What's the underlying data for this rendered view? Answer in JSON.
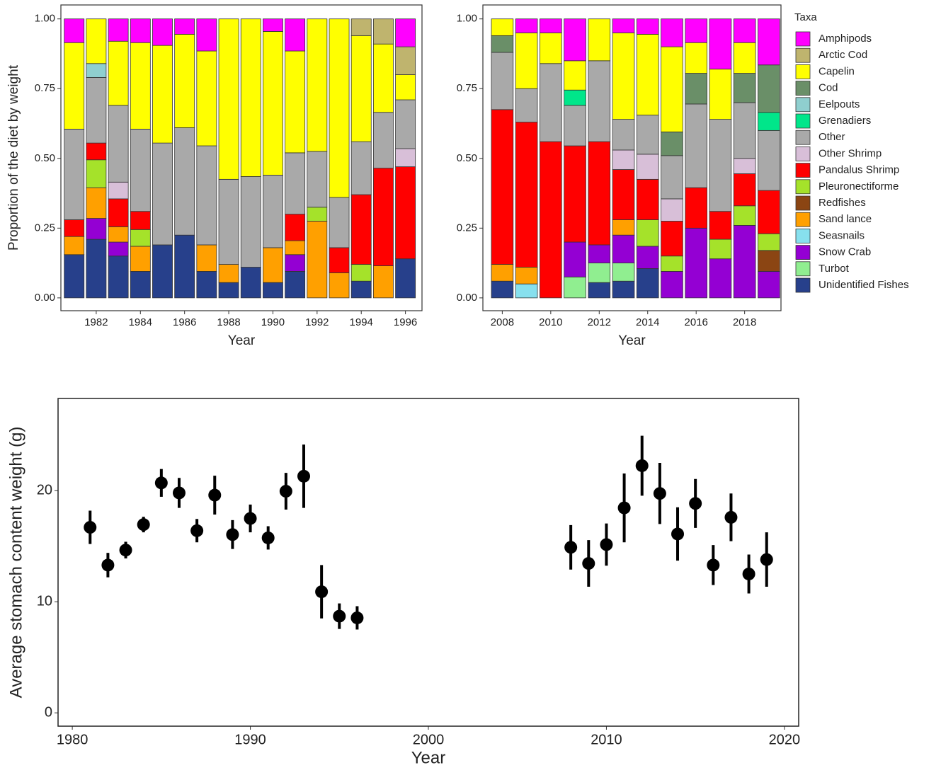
{
  "chart_data": [
    {
      "type": "stacked-bar",
      "xlabel": "Year",
      "ylabel": "Proportion of the diet by weight",
      "x": [
        1981,
        1982,
        1983,
        1984,
        1985,
        1986,
        1987,
        1988,
        1989,
        1990,
        1991,
        1992,
        1993,
        1994,
        1995,
        1996
      ],
      "xlim": [
        1980.4,
        1996.75
      ],
      "xticks": [
        1982,
        1984,
        1986,
        1988,
        1990,
        1992,
        1994,
        1996
      ],
      "ylim": [
        -0.046,
        1.05
      ],
      "yticks": [
        {
          "value": 0,
          "label": "0.00"
        },
        {
          "value": 0.25,
          "label": "0.25"
        },
        {
          "value": 0.5,
          "label": "0.50"
        },
        {
          "value": 0.75,
          "label": "0.75"
        },
        {
          "value": 1,
          "label": "1.00"
        }
      ],
      "series": [
        {
          "values": [
            0.085,
            0,
            0.08,
            0.085,
            0.095,
            0.055,
            0.115,
            0,
            0,
            0.045,
            0.115,
            0,
            0,
            0,
            0,
            0.1
          ]
        },
        {
          "values": [
            0,
            0,
            0,
            0,
            0,
            0,
            0,
            0,
            0,
            0,
            0,
            0,
            0,
            0.06,
            0.09,
            0.1
          ]
        },
        {
          "values": [
            0.31,
            0.16,
            0.23,
            0.31,
            0.35,
            0.335,
            0.34,
            0.575,
            0.565,
            0.515,
            0.365,
            0.475,
            0.64,
            0.38,
            0.245,
            0.09
          ]
        },
        {
          "values": [
            0,
            0,
            0,
            0,
            0,
            0,
            0,
            0,
            0,
            0,
            0,
            0,
            0,
            0,
            0,
            0
          ]
        },
        {
          "values": [
            0,
            0.05,
            0,
            0,
            0,
            0,
            0,
            0,
            0,
            0,
            0,
            0,
            0,
            0,
            0,
            0
          ]
        },
        {
          "values": [
            0,
            0,
            0,
            0,
            0,
            0,
            0,
            0,
            0,
            0,
            0,
            0,
            0,
            0,
            0,
            0
          ]
        },
        {
          "values": [
            0.325,
            0.235,
            0.275,
            0.295,
            0.365,
            0.385,
            0.355,
            0.305,
            0.325,
            0.26,
            0.22,
            0.2,
            0.18,
            0.19,
            0.2,
            0.175
          ]
        },
        {
          "values": [
            0,
            0,
            0.06,
            0,
            0,
            0,
            0,
            0,
            0,
            0,
            0,
            0,
            0,
            0,
            0,
            0.065
          ]
        },
        {
          "values": [
            0.06,
            0.06,
            0.1,
            0.065,
            0,
            0,
            0,
            0,
            0,
            0,
            0.095,
            0,
            0.09,
            0.25,
            0.35,
            0.33
          ]
        },
        {
          "values": [
            0,
            0.1,
            0,
            0.06,
            0,
            0,
            0,
            0,
            0,
            0,
            0,
            0.05,
            0,
            0.06,
            0,
            0
          ]
        },
        {
          "values": [
            0,
            0,
            0,
            0,
            0,
            0,
            0,
            0,
            0,
            0,
            0,
            0,
            0,
            0,
            0,
            0
          ]
        },
        {
          "values": [
            0.065,
            0.11,
            0.055,
            0.09,
            0,
            0,
            0.095,
            0.065,
            0,
            0.125,
            0.05,
            0.275,
            0.09,
            0,
            0.115,
            0
          ]
        },
        {
          "values": [
            0,
            0,
            0,
            0,
            0,
            0,
            0,
            0,
            0,
            0,
            0,
            0,
            0,
            0,
            0,
            0
          ]
        },
        {
          "values": [
            0,
            0.075,
            0.05,
            0,
            0,
            0,
            0,
            0,
            0,
            0,
            0.06,
            0,
            0,
            0,
            0,
            0
          ]
        },
        {
          "values": [
            0,
            0,
            0,
            0,
            0,
            0,
            0,
            0,
            0,
            0,
            0,
            0,
            0,
            0,
            0,
            0
          ]
        },
        {
          "values": [
            0.155,
            0.21,
            0.15,
            0.095,
            0.19,
            0.225,
            0.095,
            0.055,
            0.11,
            0.055,
            0.095,
            0,
            0,
            0.06,
            0,
            0.14
          ]
        }
      ]
    },
    {
      "type": "stacked-bar",
      "xlabel": "Year",
      "legend_title": "Taxa",
      "x": [
        2008,
        2009,
        2010,
        2011,
        2012,
        2013,
        2014,
        2015,
        2016,
        2017,
        2018,
        2019
      ],
      "xlim": [
        2007.2,
        2019.5
      ],
      "xticks": [
        2008,
        2010,
        2012,
        2014,
        2016,
        2018
      ],
      "ylim": [
        -0.046,
        1.05
      ],
      "yticks": [
        {
          "value": 0,
          "label": "0.00"
        },
        {
          "value": 0.25,
          "label": "0.25"
        },
        {
          "value": 0.5,
          "label": "0.50"
        },
        {
          "value": 0.75,
          "label": "0.75"
        },
        {
          "value": 1,
          "label": "1.00"
        }
      ],
      "series": [
        {
          "name": "Amphipods",
          "color": "#ff00ff",
          "values": [
            0,
            0.05,
            0.05,
            0.15,
            0,
            0.05,
            0.055,
            0.1,
            0.085,
            0.18,
            0.085,
            0.165
          ]
        },
        {
          "name": "Arctic Cod",
          "color": "#bfb46e",
          "values": [
            0,
            0,
            0,
            0,
            0,
            0,
            0,
            0,
            0,
            0,
            0,
            0
          ]
        },
        {
          "name": "Capelin",
          "color": "#ffff00",
          "values": [
            0.06,
            0.2,
            0.11,
            0.105,
            0.15,
            0.31,
            0.29,
            0.305,
            0.11,
            0.18,
            0.11,
            0
          ]
        },
        {
          "name": "Cod",
          "color": "#6a8f68",
          "values": [
            0.06,
            0,
            0,
            0,
            0,
            0,
            0,
            0.085,
            0.11,
            0,
            0.105,
            0.17
          ]
        },
        {
          "name": "Eelpouts",
          "color": "#8fcfcf",
          "values": [
            0,
            0,
            0,
            0,
            0,
            0,
            0,
            0,
            0,
            0,
            0,
            0
          ]
        },
        {
          "name": "Grenadiers",
          "color": "#00e68a",
          "values": [
            0,
            0,
            0,
            0.055,
            0,
            0,
            0,
            0,
            0,
            0,
            0,
            0.065
          ]
        },
        {
          "name": "Other",
          "color": "#a9a9a9",
          "values": [
            0.205,
            0.12,
            0.28,
            0.145,
            0.29,
            0.11,
            0.14,
            0.155,
            0.3,
            0.33,
            0.2,
            0.215
          ]
        },
        {
          "name": "Other Shrimp",
          "color": "#d8bfd8",
          "values": [
            0,
            0,
            0,
            0,
            0,
            0.07,
            0.09,
            0.08,
            0,
            0,
            0.055,
            0
          ]
        },
        {
          "name": "Pandalus Shrimp",
          "color": "#ff0000",
          "values": [
            0.555,
            0.52,
            0.56,
            0.345,
            0.37,
            0.18,
            0.145,
            0.125,
            0.145,
            0.1,
            0.115,
            0.155
          ]
        },
        {
          "name": "Pleuronectiforme",
          "color": "#a5e22a",
          "values": [
            0,
            0,
            0,
            0,
            0,
            0,
            0.095,
            0.055,
            0,
            0.07,
            0.07,
            0.06
          ]
        },
        {
          "name": "Redfishes",
          "color": "#8b4513",
          "values": [
            0,
            0,
            0,
            0,
            0,
            0,
            0,
            0,
            0,
            0,
            0,
            0.075
          ]
        },
        {
          "name": "Sand lance",
          "color": "#ffa000",
          "values": [
            0.06,
            0.06,
            0,
            0,
            0,
            0.055,
            0,
            0,
            0,
            0,
            0,
            0
          ]
        },
        {
          "name": "Seasnails",
          "color": "#87e0ee",
          "values": [
            0,
            0.05,
            0,
            0,
            0,
            0,
            0,
            0,
            0,
            0,
            0,
            0
          ]
        },
        {
          "name": "Snow Crab",
          "color": "#9400d3",
          "values": [
            0,
            0,
            0,
            0.125,
            0.065,
            0.1,
            0.08,
            0.095,
            0.25,
            0.14,
            0.26,
            0.095
          ]
        },
        {
          "name": "Turbot",
          "color": "#90ee90",
          "values": [
            0,
            0,
            0,
            0.075,
            0.07,
            0.065,
            0,
            0,
            0,
            0,
            0,
            0
          ]
        },
        {
          "name": "Unidentified Fishes",
          "color": "#27408b",
          "values": [
            0.06,
            0,
            0,
            0,
            0.055,
            0.06,
            0.105,
            0,
            0,
            0,
            0,
            0
          ]
        }
      ]
    },
    {
      "type": "errorbar",
      "xlabel": "Year",
      "ylabel": "Average stomach content weight (g)",
      "color": "#000000",
      "x": [
        1981,
        1982,
        1983,
        1984,
        1985,
        1986,
        1987,
        1988,
        1989,
        1990,
        1991,
        1992,
        1993,
        1994,
        1995,
        1996,
        2008,
        2009,
        2010,
        2011,
        2012,
        2013,
        2014,
        2015,
        2016,
        2017,
        2018,
        2019
      ],
      "values": [
        16.7,
        13.3,
        14.65,
        16.95,
        20.7,
        19.8,
        16.4,
        19.6,
        16.05,
        17.5,
        15.75,
        19.95,
        21.3,
        10.9,
        8.7,
        8.55,
        14.9,
        13.45,
        15.15,
        18.45,
        22.25,
        19.75,
        16.1,
        18.85,
        13.3,
        17.6,
        12.5,
        13.8
      ],
      "errors": [
        1.5,
        1.1,
        0.75,
        0.7,
        1.25,
        1.35,
        1.05,
        1.75,
        1.3,
        1.25,
        1.05,
        1.65,
        2.85,
        2.4,
        1.15,
        1.05,
        2.0,
        2.1,
        1.9,
        3.1,
        2.7,
        2.75,
        2.4,
        2.2,
        1.8,
        2.15,
        1.75,
        2.45
      ],
      "xlim": [
        1979.2,
        2020.8
      ],
      "xticks": [
        1980,
        1990,
        2000,
        2010,
        2020
      ],
      "ylim": [
        -1.2,
        28.3
      ],
      "yticks": [
        0,
        10,
        20
      ]
    }
  ]
}
